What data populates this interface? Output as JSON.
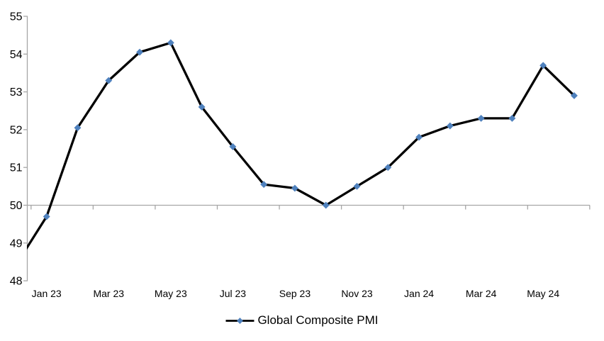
{
  "chart_data": {
    "type": "line",
    "title": "",
    "x": [
      "Dec 22",
      "Jan 23",
      "Feb 23",
      "Mar 23",
      "Apr 23",
      "May 23",
      "Jun 23",
      "Jul 23",
      "Aug 23",
      "Sep 23",
      "Oct 23",
      "Nov 23",
      "Dec 23",
      "Jan 24",
      "Feb 24",
      "Mar 24",
      "Apr 24",
      "May 24",
      "Jun 24"
    ],
    "series": [
      {
        "name": "Global Composite PMI",
        "values": [
          48.4,
          49.7,
          52.05,
          53.3,
          54.05,
          54.3,
          52.6,
          51.55,
          50.55,
          50.45,
          50.0,
          50.5,
          51.0,
          51.8,
          52.1,
          52.3,
          52.3,
          53.7,
          52.9
        ]
      }
    ],
    "visible_x_tick_labels": [
      "Jan 23",
      "Mar 23",
      "May 23",
      "Jul 23",
      "Sep 23",
      "Nov 23",
      "Jan 24",
      "Mar 24",
      "May 24"
    ],
    "y_tick_labels": [
      "48",
      "49",
      "50",
      "51",
      "52",
      "53",
      "54",
      "55"
    ],
    "ylim": [
      48,
      55
    ],
    "x_axis_cross_y": 50,
    "grid": "off",
    "legend": {
      "label": "Global Composite PMI",
      "position": "bottom-center"
    },
    "colors": {
      "series_line": "#000000",
      "marker": "#4f81bd",
      "axis": "#a6a6a6",
      "label_text": "#000000",
      "background": "#ffffff"
    }
  }
}
